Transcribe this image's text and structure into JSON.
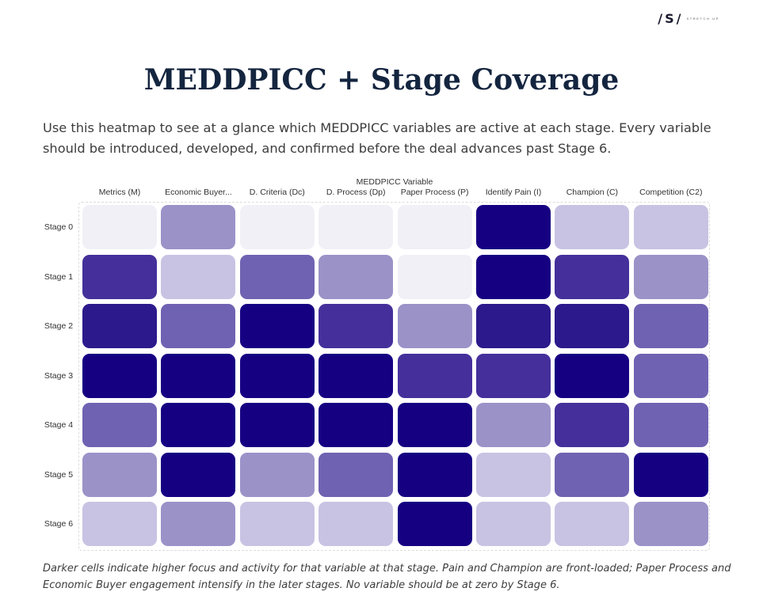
{
  "brand": {
    "mark": "/S/",
    "text": "STRETCH UP"
  },
  "title": "MEDDPICC + Stage Coverage",
  "subtitle": "Use this heatmap to see at a glance which MEDDPICC variables are active at each stage. Every variable should be introduced, developed, and confirmed before the deal advances past Stage 6.",
  "note": "Darker cells indicate higher focus and activity for that variable at that stage. Pain and Champion are front-loaded; Paper Process and Economic Buyer engagement intensify in the later stages. No variable should be at zero by Stage 6.",
  "chart_data": {
    "type": "heatmap",
    "xlabel": "MEDDPICC Variable",
    "ylabel": "",
    "columns": [
      "Metrics (M)",
      "Economic Buyer...",
      "D. Criteria (Dc)",
      "D. Process (Dp)",
      "Paper Process (P)",
      "Identify Pain (I)",
      "Champion (C)",
      "Competition (C2)"
    ],
    "rows": [
      "Stage 0",
      "Stage 1",
      "Stage 2",
      "Stage 3",
      "Stage 4",
      "Stage 5",
      "Stage 6"
    ],
    "scale": [
      0,
      6
    ],
    "colors": [
      "#f1f0f7",
      "#c8c3e3",
      "#9b92c8",
      "#7062b2",
      "#45309b",
      "#2c1a8c",
      "#160082"
    ],
    "values": [
      [
        0,
        2,
        0,
        0,
        0,
        6,
        1,
        1
      ],
      [
        4,
        1,
        3,
        2,
        0,
        6,
        4,
        2
      ],
      [
        5,
        3,
        6,
        4,
        2,
        5,
        5,
        3
      ],
      [
        6,
        6,
        6,
        6,
        4,
        4,
        6,
        3
      ],
      [
        3,
        6,
        6,
        6,
        6,
        2,
        4,
        3
      ],
      [
        2,
        6,
        2,
        3,
        6,
        1,
        3,
        6
      ],
      [
        1,
        2,
        1,
        1,
        6,
        1,
        1,
        2
      ]
    ]
  }
}
